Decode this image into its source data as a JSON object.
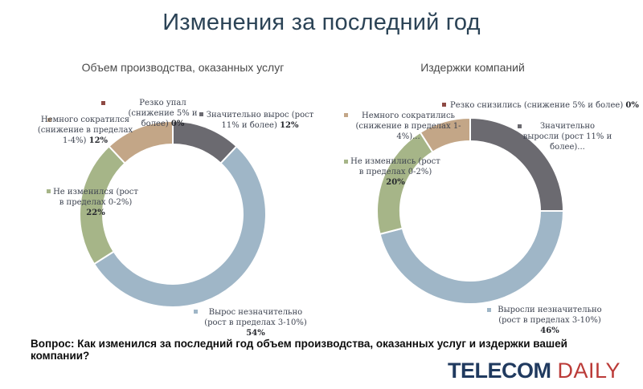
{
  "title": "Изменения за последний год",
  "question": "Вопрос: Как изменился за последний год объем производства, оказанных услуг и издержки вашей компании?",
  "logo": {
    "part1": "TELECOM",
    "part2": "DAILY",
    "color1": "#203A5F",
    "color2": "#BB3B38"
  },
  "title_color": "#2B4356",
  "chart_data": [
    {
      "type": "pie",
      "donut": true,
      "title": "Объем производства, оказанных услуг",
      "legend_position": "outside-labels",
      "direction": "clockwise-from-top",
      "slices": [
        {
          "label": "Значительно вырос (рост 11% и более)",
          "pct_label": "12%",
          "value": 12,
          "color": "#6B6A70"
        },
        {
          "label": "Вырос незначительно (рост в пределах 3-10%)",
          "pct_label": "54%",
          "value": 54,
          "color": "#9FB6C7"
        },
        {
          "label": "Не изменился (рост в пределах 0-2%)",
          "pct_label": "22%",
          "value": 22,
          "color": "#A6B588"
        },
        {
          "label": "Немного сократился (снижение в пределах 1-4%)",
          "pct_label": "12%",
          "value": 12,
          "color": "#C3A687"
        },
        {
          "label": "Резко упал (снижение 5% и более)",
          "pct_label": "0%",
          "value": 0,
          "color": "#8E4A44"
        }
      ]
    },
    {
      "type": "pie",
      "donut": true,
      "title": "Издержки компаний",
      "legend_position": "outside-labels",
      "direction": "clockwise-from-top",
      "slices": [
        {
          "label": "Значительно выросли (рост 11% и более)...",
          "pct_label": "",
          "value": 25,
          "value_estimated": true,
          "color": "#6B6A70"
        },
        {
          "label": "Выросли незначительно (рост в пределах 3-10%)",
          "pct_label": "46%",
          "value": 46,
          "color": "#9FB6C7"
        },
        {
          "label": "Не изменились (рост в пределах 0-2%)",
          "pct_label": "20%",
          "value": 20,
          "color": "#A6B588"
        },
        {
          "label": "Немного сократились (снижение в пределах 1-4%)...",
          "pct_label": "",
          "value": 9,
          "value_estimated": true,
          "color": "#C3A687"
        },
        {
          "label": "Резко снизились (снижение 5% и более)",
          "pct_label": "0%",
          "value": 0,
          "color": "#8E4A44"
        }
      ]
    }
  ]
}
